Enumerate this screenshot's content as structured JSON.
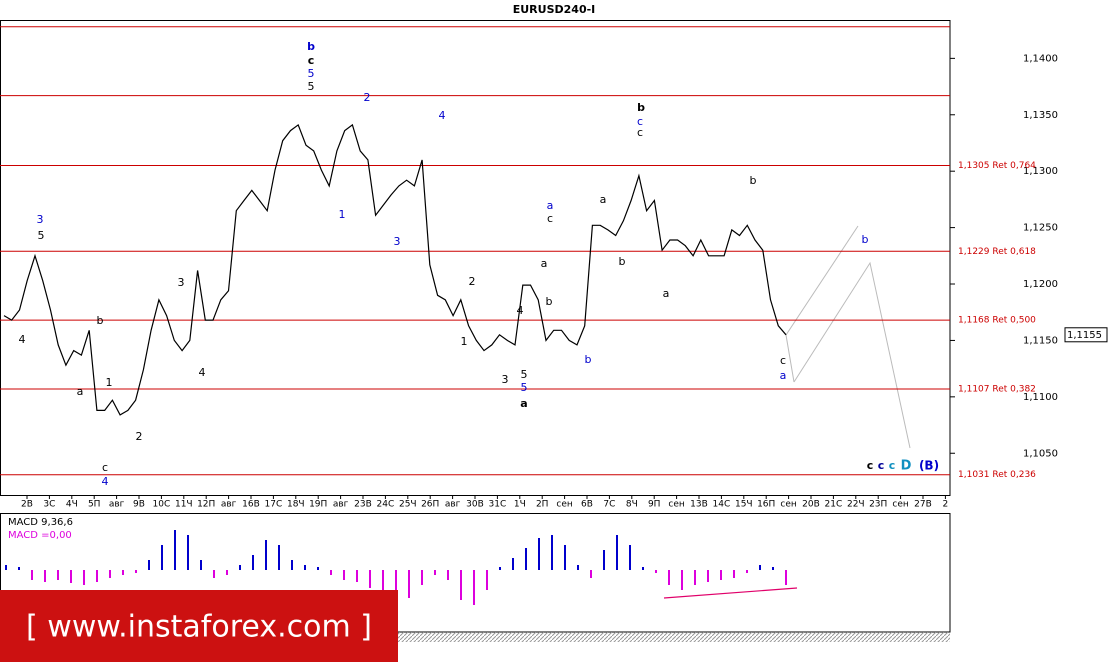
{
  "chart_data": [
    {
      "type": "line",
      "title": "EURUSD240-I",
      "color": "#000000",
      "values": [
        1.1172,
        1.1168,
        1.1177,
        1.1203,
        1.1225,
        1.1203,
        1.1177,
        1.1146,
        1.1128,
        1.1141,
        1.1137,
        1.1159,
        1.1088,
        1.1088,
        1.1097,
        1.1084,
        1.1088,
        1.1097,
        1.1124,
        1.1159,
        1.1186,
        1.1172,
        1.115,
        1.1141,
        1.115,
        1.1212,
        1.1168,
        1.1168,
        1.1186,
        1.1194,
        1.1265,
        1.1274,
        1.1283,
        1.1274,
        1.1265,
        1.1301,
        1.1327,
        1.1336,
        1.1341,
        1.1323,
        1.1318,
        1.1301,
        1.1287,
        1.1318,
        1.1336,
        1.1341,
        1.1318,
        1.131,
        1.1261,
        1.127,
        1.1279,
        1.1287,
        1.1292,
        1.1287,
        1.131,
        1.1217,
        1.119,
        1.1186,
        1.1172,
        1.1186,
        1.1163,
        1.115,
        1.1141,
        1.1146,
        1.1155,
        1.115,
        1.1146,
        1.1199,
        1.1199,
        1.1186,
        1.115,
        1.1159,
        1.1159,
        1.115,
        1.1146,
        1.1163,
        1.1252,
        1.1252,
        1.1248,
        1.1243,
        1.1256,
        1.1274,
        1.1296,
        1.1265,
        1.1274,
        1.123,
        1.1239,
        1.1239,
        1.1234,
        1.1225,
        1.1239,
        1.1225,
        1.1225,
        1.1225,
        1.1248,
        1.1243,
        1.1252,
        1.1239,
        1.123,
        1.1186,
        1.1163,
        1.1155
      ],
      "ylim": [
        1.1013,
        1.1434
      ],
      "yticks": [
        {
          "value": 1.105,
          "label": "1,1050"
        },
        {
          "value": 1.11,
          "label": "1,1100"
        },
        {
          "value": 1.115,
          "label": "1,1150"
        },
        {
          "value": 1.12,
          "label": "1,1200"
        },
        {
          "value": 1.125,
          "label": "1,1250"
        },
        {
          "value": 1.13,
          "label": "1,1300"
        },
        {
          "value": 1.135,
          "label": "1,1350"
        },
        {
          "value": 1.14,
          "label": "1,1400"
        }
      ],
      "xtick_labels": [
        "2В",
        "3С",
        "4Ч",
        "5П",
        "авг",
        "9В",
        "10С",
        "11Ч",
        "12П",
        "авг",
        "16В",
        "17С",
        "18Ч",
        "19П",
        "авг",
        "23В",
        "24С",
        "25Ч",
        "26П",
        "авг",
        "30В",
        "31С",
        "1Ч",
        "2П",
        "сен",
        "6В",
        "7С",
        "8Ч",
        "9П",
        "сен",
        "13В",
        "14С",
        "15Ч",
        "16П",
        "сен",
        "20В",
        "21С",
        "22Ч",
        "23П",
        "сен",
        "27В",
        "2"
      ],
      "lines": [
        1.1428,
        1.1367
      ],
      "levels": [
        {
          "value": 1.1305,
          "label": "1,1305 Ret 0,764"
        },
        {
          "value": 1.1229,
          "label": "1,1229 Ret 0,618"
        },
        {
          "value": 1.1168,
          "label": "1,1168 Ret 0,500"
        },
        {
          "value": 1.1107,
          "label": "1,1107 Ret 0,382"
        },
        {
          "value": 1.1031,
          "label": "1,1031 Ret 0,236"
        }
      ],
      "level_color": "#cc0000",
      "current_price": {
        "value": 1.1155,
        "label": "1,1155"
      },
      "wave_labels": [
        "3",
        "5",
        "4",
        "a",
        "b",
        "1",
        "c",
        "4",
        "2",
        "3",
        "4",
        "b",
        "c",
        "5",
        "5",
        "2",
        "1",
        "3",
        "4",
        "1",
        "2",
        "4",
        "3",
        "5",
        "5",
        "a",
        "a",
        "c",
        "a",
        "b",
        "b",
        "a",
        "b",
        "b",
        "c",
        "c",
        "a",
        "b",
        "c",
        "a",
        "b",
        "c",
        "c",
        "c",
        "D",
        "(B)"
      ],
      "watermark": "[ www.instaforex.com ]"
    },
    {
      "type": "bar",
      "label": "MACD 9,36,6",
      "value_label": "MACD =0,00",
      "colors": {
        "positive": "#0000cc",
        "negative": "#dd00dd"
      },
      "ylim": [
        -0.0062,
        0.0057
      ],
      "values": [
        0.0005,
        0.0003,
        -0.001,
        -0.0012,
        -0.001,
        -0.0013,
        -0.0015,
        -0.0012,
        -0.0008,
        -0.0005,
        -0.0003,
        0.001,
        0.0025,
        0.004,
        0.0035,
        0.001,
        -0.0008,
        -0.0005,
        0.0005,
        0.0015,
        0.003,
        0.0025,
        0.001,
        0.0005,
        0.0003,
        -0.0005,
        -0.001,
        -0.0012,
        -0.0018,
        -0.0025,
        -0.0035,
        -0.0028,
        -0.0015,
        -0.0005,
        -0.001,
        -0.003,
        -0.0035,
        -0.002,
        0.0003,
        0.0012,
        0.0022,
        0.0032,
        0.0035,
        0.0025,
        0.0005,
        -0.0008,
        0.002,
        0.0035,
        0.0025,
        0.0003,
        -0.0003,
        -0.0015,
        -0.002,
        -0.0015,
        -0.0012,
        -0.001,
        -0.0008,
        -0.0003,
        0.0005,
        0.0003,
        -0.0015
      ]
    }
  ]
}
